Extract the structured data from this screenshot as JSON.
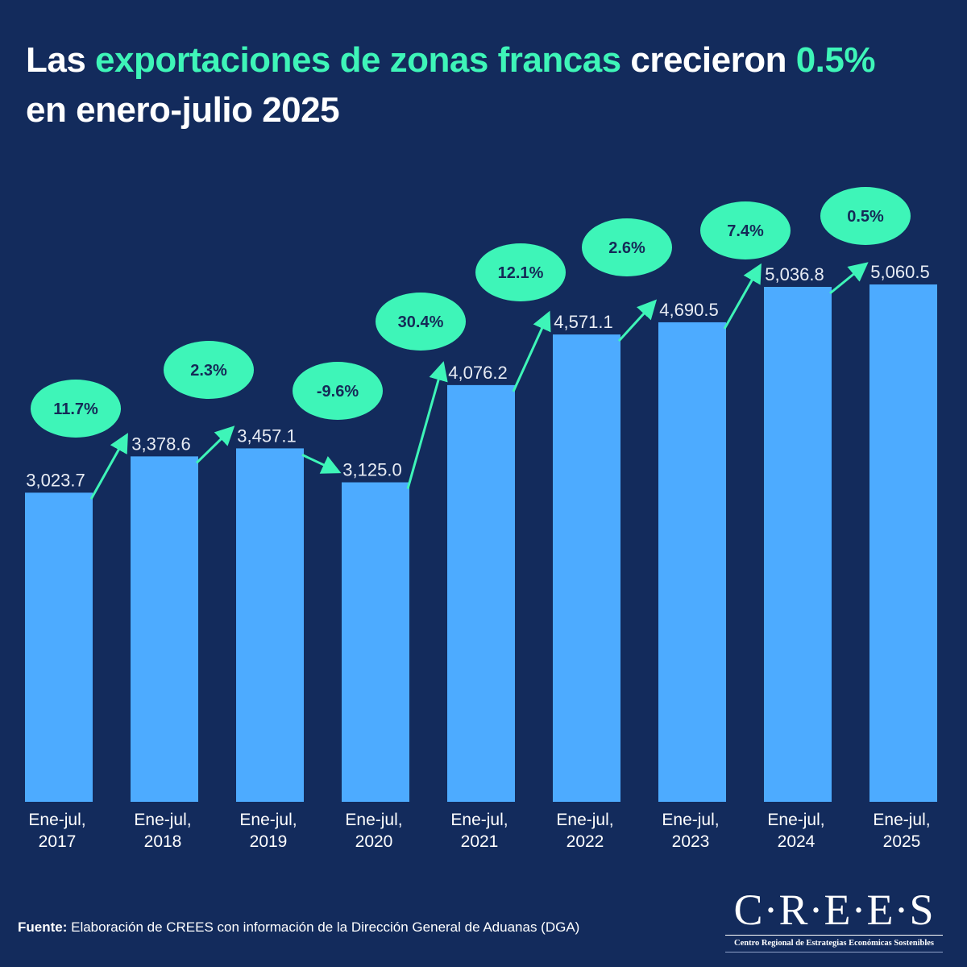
{
  "title": {
    "part1": "Las ",
    "highlight1": "exportaciones de zonas francas",
    "part2": " crecieron ",
    "highlight2": "0.5%",
    "line2": "en enero-julio 2025"
  },
  "colors": {
    "background": "#132b5c",
    "bar": "#4dabff",
    "accent": "#3ef5b8",
    "text": "#ffffff"
  },
  "chart_data": {
    "type": "bar",
    "title": "Las exportaciones de zonas francas crecieron 0.5% en enero-julio 2025",
    "xlabel": "",
    "ylabel": "",
    "ylim": [
      0,
      5060.5
    ],
    "grid": false,
    "legend": "none",
    "categories": [
      [
        "Ene-jul,",
        "2017"
      ],
      [
        "Ene-jul,",
        "2018"
      ],
      [
        "Ene-jul,",
        "2019"
      ],
      [
        "Ene-jul,",
        "2020"
      ],
      [
        "Ene-jul,",
        "2021"
      ],
      [
        "Ene-jul,",
        "2022"
      ],
      [
        "Ene-jul,",
        "2023"
      ],
      [
        "Ene-jul,",
        "2024"
      ],
      [
        "Ene-jul,",
        "2025"
      ]
    ],
    "values": [
      3023.7,
      3378.6,
      3457.1,
      3125.0,
      4076.2,
      4571.1,
      4690.5,
      5036.8,
      5060.5
    ],
    "value_labels": [
      "3,023.7",
      "3,378.6",
      "3,457.1",
      "3,125.0",
      "4,076.2",
      "4,571.1",
      "4,690.5",
      "5,036.8",
      "5,060.5"
    ],
    "growth_labels": [
      "11.7%",
      "2.3%",
      "-9.6%",
      "30.4%",
      "12.1%",
      "2.6%",
      "7.4%",
      "0.5%"
    ],
    "growth_values": [
      11.7,
      2.3,
      -9.6,
      30.4,
      12.1,
      2.6,
      7.4,
      0.5
    ]
  },
  "footer": {
    "source_label": "Fuente:",
    "source_text": " Elaboración de CREES con información de la Dirección General de Aduanas (DGA)"
  },
  "logo": {
    "name": "C·R·E·E·S",
    "subtitle": "Centro Regional de Estrategias Económicas Sostenibles"
  }
}
